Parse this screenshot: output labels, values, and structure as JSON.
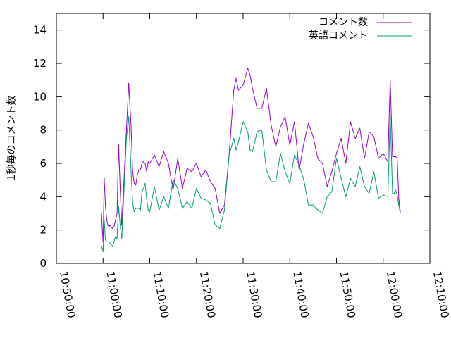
{
  "chart_data": {
    "type": "line",
    "title": "",
    "xlabel": "",
    "ylabel": "1秒毎のコメント数",
    "ylim": [
      0,
      15
    ],
    "xlim": [
      "10:50:00",
      "12:10:00"
    ],
    "grid": false,
    "legend_position": "top-right",
    "y_ticks": [
      0,
      2,
      4,
      6,
      8,
      10,
      12,
      14
    ],
    "x_ticks": [
      "10:50:00",
      "11:00:00",
      "11:10:00",
      "11:20:00",
      "11:30:00",
      "11:40:00",
      "11:50:00",
      "12:00:00",
      "12:10:00"
    ],
    "series": [
      {
        "name": "コメント数",
        "color": "#9400d3",
        "x": [
          "10:59:40",
          "10:59:50",
          "11:00:00",
          "11:00:15",
          "11:00:30",
          "11:00:45",
          "11:01:00",
          "11:01:15",
          "11:01:30",
          "11:01:45",
          "11:02:00",
          "11:02:20",
          "11:02:40",
          "11:03:00",
          "11:03:20",
          "11:03:40",
          "11:04:00",
          "11:05:00",
          "11:05:30",
          "11:06:00",
          "11:06:20",
          "11:06:40",
          "11:07:00",
          "11:07:20",
          "11:07:40",
          "11:08:00",
          "11:08:20",
          "11:08:40",
          "11:09:00",
          "11:09:20",
          "11:09:40",
          "11:10:00",
          "11:11:00",
          "11:12:00",
          "11:13:00",
          "11:14:00",
          "11:15:00",
          "11:16:00",
          "11:17:00",
          "11:18:00",
          "11:19:00",
          "11:20:00",
          "11:21:00",
          "11:22:00",
          "11:23:00",
          "11:24:00",
          "11:25:00",
          "11:26:00",
          "11:27:00",
          "11:28:00",
          "11:28:30",
          "11:29:00",
          "11:30:00",
          "11:31:00",
          "11:31:30",
          "11:32:00",
          "11:33:00",
          "11:34:00",
          "11:35:00",
          "11:36:00",
          "11:37:00",
          "11:38:00",
          "11:39:00",
          "11:40:00",
          "11:41:00",
          "11:42:00",
          "11:43:00",
          "11:44:00",
          "11:45:00",
          "11:46:00",
          "11:47:00",
          "11:48:00",
          "11:49:00",
          "11:50:00",
          "11:51:00",
          "11:52:00",
          "11:53:00",
          "11:54:00",
          "11:55:00",
          "11:56:00",
          "11:57:00",
          "11:58:00",
          "11:59:00",
          "12:00:00",
          "12:01:00",
          "12:01:30",
          "12:02:00",
          "12:02:20",
          "12:02:40",
          "12:03:00",
          "12:03:20",
          "12:03:40"
        ],
        "values": [
          3.0,
          2.0,
          1.3,
          5.1,
          3.5,
          2.7,
          2.3,
          2.2,
          2.3,
          2.2,
          2.1,
          2.2,
          2.6,
          3.0,
          7.1,
          4.5,
          2.3,
          8.0,
          10.8,
          8.2,
          5.5,
          4.8,
          4.7,
          5.3,
          5.6,
          5.6,
          6.0,
          6.1,
          6.0,
          5.5,
          6.1,
          6.0,
          6.5,
          5.8,
          6.7,
          6.0,
          4.4,
          6.3,
          4.5,
          5.7,
          5.5,
          6.0,
          5.2,
          5.6,
          4.9,
          4.5,
          3.0,
          3.5,
          6.5,
          10.4,
          11.1,
          10.4,
          10.7,
          11.7,
          11.3,
          10.5,
          9.3,
          9.3,
          10.5,
          8.3,
          7.0,
          8.2,
          8.8,
          7.1,
          8.5,
          5.6,
          7.2,
          8.4,
          7.6,
          6.3,
          6.0,
          4.6,
          5.5,
          6.6,
          7.5,
          6.0,
          8.5,
          7.5,
          8.1,
          6.3,
          7.9,
          7.6,
          6.3,
          6.6,
          6.1,
          11.0,
          6.4,
          6.4,
          6.4,
          6.3,
          3.9,
          3.1
        ]
      },
      {
        "name": "英語コメント",
        "color": "#009e73",
        "x": [
          "10:59:40",
          "10:59:50",
          "11:00:00",
          "11:00:15",
          "11:00:30",
          "11:00:45",
          "11:01:00",
          "11:01:15",
          "11:01:30",
          "11:01:45",
          "11:02:00",
          "11:02:20",
          "11:02:40",
          "11:03:00",
          "11:03:20",
          "11:03:40",
          "11:04:00",
          "11:05:00",
          "11:05:30",
          "11:06:00",
          "11:06:20",
          "11:06:40",
          "11:07:00",
          "11:07:20",
          "11:07:40",
          "11:08:00",
          "11:08:20",
          "11:08:40",
          "11:09:00",
          "11:09:20",
          "11:09:40",
          "11:10:00",
          "11:11:00",
          "11:12:00",
          "11:13:00",
          "11:14:00",
          "11:15:00",
          "11:16:00",
          "11:17:00",
          "11:18:00",
          "11:19:00",
          "11:20:00",
          "11:21:00",
          "11:22:00",
          "11:23:00",
          "11:24:00",
          "11:25:00",
          "11:26:00",
          "11:27:00",
          "11:28:00",
          "11:28:30",
          "11:29:00",
          "11:30:00",
          "11:31:00",
          "11:31:30",
          "11:32:00",
          "11:33:00",
          "11:34:00",
          "11:35:00",
          "11:36:00",
          "11:37:00",
          "11:38:00",
          "11:39:00",
          "11:40:00",
          "11:41:00",
          "11:42:00",
          "11:43:00",
          "11:44:00",
          "11:45:00",
          "11:46:00",
          "11:47:00",
          "11:48:00",
          "11:49:00",
          "11:50:00",
          "11:51:00",
          "11:52:00",
          "11:53:00",
          "11:54:00",
          "11:55:00",
          "11:56:00",
          "11:57:00",
          "11:58:00",
          "11:59:00",
          "12:00:00",
          "12:01:00",
          "12:01:30",
          "12:02:00",
          "12:02:20",
          "12:02:40",
          "12:03:00",
          "12:03:20",
          "12:03:40"
        ],
        "values": [
          1.0,
          0.9,
          0.7,
          2.6,
          1.4,
          1.3,
          1.3,
          1.3,
          1.2,
          1.1,
          1.0,
          1.3,
          1.6,
          1.5,
          3.4,
          2.3,
          1.5,
          7.5,
          8.8,
          5.5,
          3.6,
          3.1,
          3.3,
          3.3,
          3.3,
          3.2,
          4.3,
          4.5,
          4.8,
          3.9,
          3.2,
          3.1,
          4.6,
          3.2,
          4.0,
          3.3,
          5.0,
          4.5,
          3.3,
          3.7,
          3.3,
          4.5,
          3.9,
          3.8,
          3.6,
          2.3,
          2.1,
          3.2,
          6.5,
          7.5,
          6.8,
          7.3,
          8.5,
          7.9,
          6.8,
          6.7,
          7.9,
          8.0,
          5.6,
          4.9,
          4.9,
          6.6,
          5.5,
          4.8,
          6.5,
          5.9,
          5.0,
          3.5,
          3.5,
          3.2,
          3.0,
          4.0,
          4.3,
          6.3,
          5.1,
          4.0,
          5.1,
          4.6,
          5.8,
          4.6,
          4.2,
          5.5,
          3.9,
          4.1,
          4.0,
          8.9,
          4.2,
          4.2,
          4.4,
          4.1,
          3.5,
          3.0
        ]
      }
    ]
  }
}
